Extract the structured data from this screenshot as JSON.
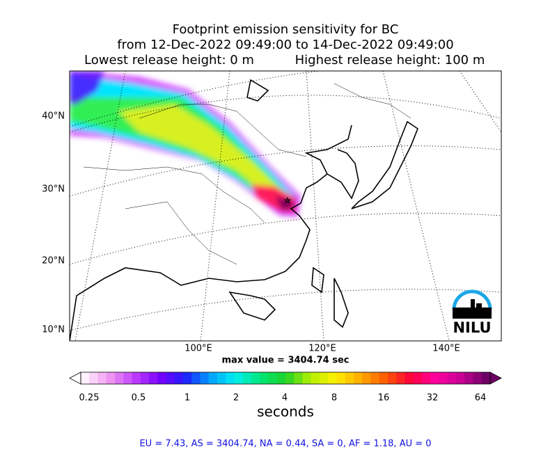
{
  "title": {
    "line1": "Footprint emission sensitivity for BC",
    "line2": "from 12-Dec-2022 09:49:00 to 14-Dec-2022 09:49:00",
    "line3_left": "Lowest release height: 0 m",
    "line3_right": "Highest release height: 100 m"
  },
  "map": {
    "lat_labels": [
      "40°N",
      "30°N",
      "20°N",
      "10°N"
    ],
    "lon_labels": [
      "100°E",
      "120°E",
      "140°E"
    ],
    "max_value": "max value = 3404.74 sec",
    "logo": "NILU"
  },
  "colorbar": {
    "ticks": [
      "0.25",
      "0.5",
      "1",
      "2",
      "4",
      "8",
      "16",
      "32",
      "64"
    ],
    "label": "seconds"
  },
  "footer": "EU = 7.43,  AS = 3404.74,  NA = 0.44,  SA = 0,  AF = 1.18,  AU = 0"
}
